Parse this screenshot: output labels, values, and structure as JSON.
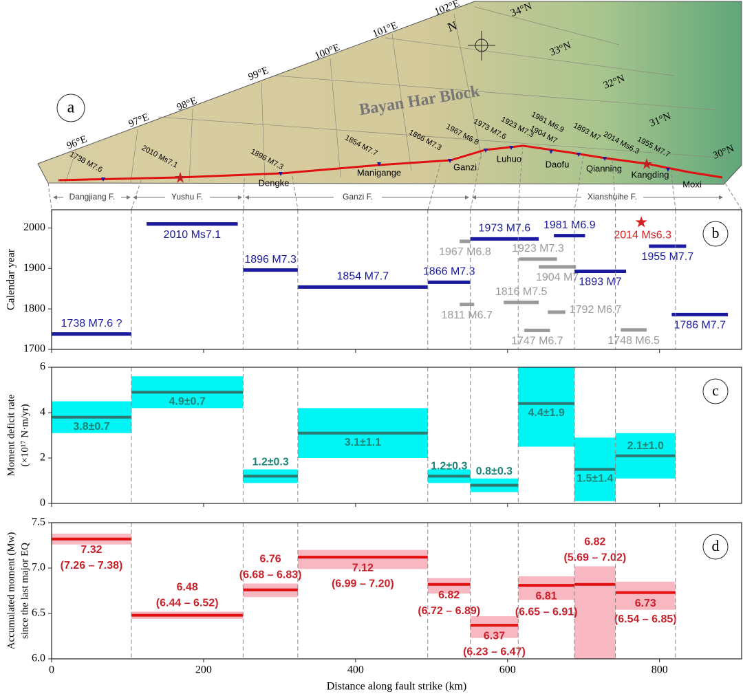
{
  "map": {
    "panel": "a",
    "title": "Bayan Har Block",
    "north": "N",
    "longitudes": [
      "96°E",
      "97°E",
      "98°E",
      "99°E",
      "100°E",
      "101°E",
      "102°E"
    ],
    "latitudes": [
      "34°N",
      "33°N",
      "32°N",
      "31°N",
      "30°N"
    ],
    "earthquakes": [
      "1738 M7.6",
      "2010 Ms7.1",
      "1896 M7.3",
      "1854 M7.7",
      "1866 M7.3",
      "1967 M6.8",
      "1973 M7.6",
      "1923 M7.3",
      "1981 M6.9",
      "1904 M7",
      "1893 M7",
      "2014 Ms6.3",
      "1955 M7.7"
    ],
    "places": [
      "Dengke",
      "Manigange",
      "Ganzi",
      "Luhuo",
      "Daofu",
      "Qianning",
      "Kangding",
      "Moxi"
    ],
    "faults": [
      "Dangjiang F.",
      "Yushu F.",
      "Ganzi F.",
      "Xianshuihe F."
    ]
  },
  "chart_data": [
    {
      "type": "segments",
      "panel": "b",
      "ylabel": "Calendar year",
      "xlim": [
        0,
        908
      ],
      "xticks": [
        0,
        200,
        400,
        600,
        800
      ],
      "ylim": [
        1700,
        2045
      ],
      "yticks": [
        1700,
        1800,
        1900,
        2000
      ],
      "events": [
        {
          "label": "1738 M7.6 ?",
          "start": 0,
          "end": 105,
          "year": 1738,
          "color": "#1a1aa0"
        },
        {
          "label": "2010 Ms7.1",
          "start": 125,
          "end": 245,
          "year": 2010,
          "color": "#1a1aa0"
        },
        {
          "label": "1896 M7.3",
          "start": 252,
          "end": 324,
          "year": 1896,
          "color": "#1a1aa0"
        },
        {
          "label": "1854 M7.7",
          "start": 324,
          "end": 495,
          "year": 1854,
          "color": "#1a1aa0"
        },
        {
          "label": "1866 M7.3",
          "start": 495,
          "end": 551,
          "year": 1866,
          "color": "#1a1aa0"
        },
        {
          "label": "1973 M7.6",
          "start": 551,
          "end": 641,
          "year": 1973,
          "color": "#1a1aa0"
        },
        {
          "label": "1981 M6.9",
          "start": 661,
          "end": 702,
          "year": 1981,
          "color": "#1a1aa0"
        },
        {
          "label": "1893 M7",
          "start": 688,
          "end": 756,
          "year": 1893,
          "color": "#1a1aa0"
        },
        {
          "label": "1955 M7.7",
          "start": 786,
          "end": 835,
          "year": 1955,
          "color": "#1a1aa0"
        },
        {
          "label": "1786 M7.7",
          "start": 816,
          "end": 890,
          "year": 1786,
          "color": "#1a1aa0"
        },
        {
          "label": "1967 M6.8",
          "start": 537,
          "end": 551,
          "year": 1967,
          "color": "#9a9a9a"
        },
        {
          "label": "1811 M6.7",
          "start": 537,
          "end": 556,
          "year": 1811,
          "color": "#9a9a9a"
        },
        {
          "label": "1923 M7.3",
          "start": 615,
          "end": 665,
          "year": 1923,
          "color": "#9a9a9a"
        },
        {
          "label": "1904 M7",
          "start": 641,
          "end": 690,
          "year": 1904,
          "color": "#9a9a9a"
        },
        {
          "label": "1816 M7.5",
          "start": 595,
          "end": 641,
          "year": 1816,
          "color": "#9a9a9a"
        },
        {
          "label": "1792 M6.7",
          "start": 653,
          "end": 676,
          "year": 1792,
          "color": "#9a9a9a"
        },
        {
          "label": "1747 M6.7",
          "start": 622,
          "end": 656,
          "year": 1747,
          "color": "#9a9a9a"
        },
        {
          "label": "1748 M6.5",
          "start": 749,
          "end": 783,
          "year": 1748,
          "color": "#9a9a9a"
        }
      ],
      "star": {
        "label": "2014 Ms6.3",
        "x": 776,
        "year": 2014,
        "color": "#d42020"
      }
    },
    {
      "type": "band",
      "panel": "c",
      "ylabel": [
        "Moment deficit rate",
        "(×10¹⁷ N·m/yr)"
      ],
      "xlim": [
        0,
        908
      ],
      "xticks": [
        0,
        200,
        400,
        600,
        800
      ],
      "ylim": [
        0,
        6
      ],
      "yticks": [
        0,
        2,
        4,
        6
      ],
      "x_start": [
        0,
        105,
        252,
        324,
        495,
        551,
        614,
        688,
        742
      ],
      "x_end": [
        105,
        252,
        324,
        495,
        551,
        614,
        688,
        742,
        821
      ],
      "values": [
        3.8,
        4.9,
        1.2,
        3.1,
        1.2,
        0.8,
        4.4,
        1.5,
        2.1
      ],
      "errors": [
        0.7,
        0.7,
        0.3,
        1.1,
        0.3,
        0.3,
        1.9,
        1.4,
        1.0
      ],
      "value_labels": [
        "3.8±0.7",
        "4.9±0.7",
        "1.2±0.3",
        "3.1±1.1",
        "1.2±0.3",
        "0.8±0.3",
        "4.4±1.9",
        "1.5±1.4",
        "2.1±1.0"
      ],
      "fill": "#00f5f5",
      "line_color": "#2e7872",
      "label_color": "#1e8478"
    },
    {
      "type": "band",
      "panel": "d",
      "ylabel": [
        "Accumulated moment (Mw)",
        "since the last major EQ"
      ],
      "xlabel": "Distance along fault strike (km)",
      "xlim": [
        0,
        908
      ],
      "xticks": [
        0,
        200,
        400,
        600,
        800
      ],
      "ylim": [
        6.0,
        7.5
      ],
      "yticks": [
        {
          "value": 6.0,
          "label": "6.0"
        },
        6.5,
        {
          "value": 7.0,
          "label": "7.0"
        },
        7.5
      ],
      "x_start": [
        0,
        105,
        252,
        324,
        495,
        551,
        614,
        688,
        742
      ],
      "x_end": [
        105,
        252,
        324,
        495,
        551,
        614,
        688,
        742,
        821
      ],
      "values": [
        7.32,
        6.48,
        6.76,
        7.12,
        6.82,
        6.37,
        6.81,
        6.82,
        6.73
      ],
      "lows": [
        7.26,
        6.44,
        6.68,
        6.99,
        6.72,
        6.23,
        6.65,
        5.69,
        6.54
      ],
      "highs": [
        7.38,
        6.52,
        6.83,
        7.2,
        6.89,
        6.47,
        6.91,
        7.02,
        6.85
      ],
      "range_labels": [
        "(7.26 – 7.38)",
        "(6.44 – 6.52)",
        "(6.68 – 6.83)",
        "(6.99 – 7.20)",
        "(6.72 – 6.89)",
        "(6.23 – 6.47)",
        "(6.65 – 6.91)",
        "(5.69 – 7.02)",
        "(6.54 – 6.85)"
      ],
      "fill": "#f7b8c2",
      "line_color": "#e01010",
      "label_color": "#c8202a"
    }
  ]
}
